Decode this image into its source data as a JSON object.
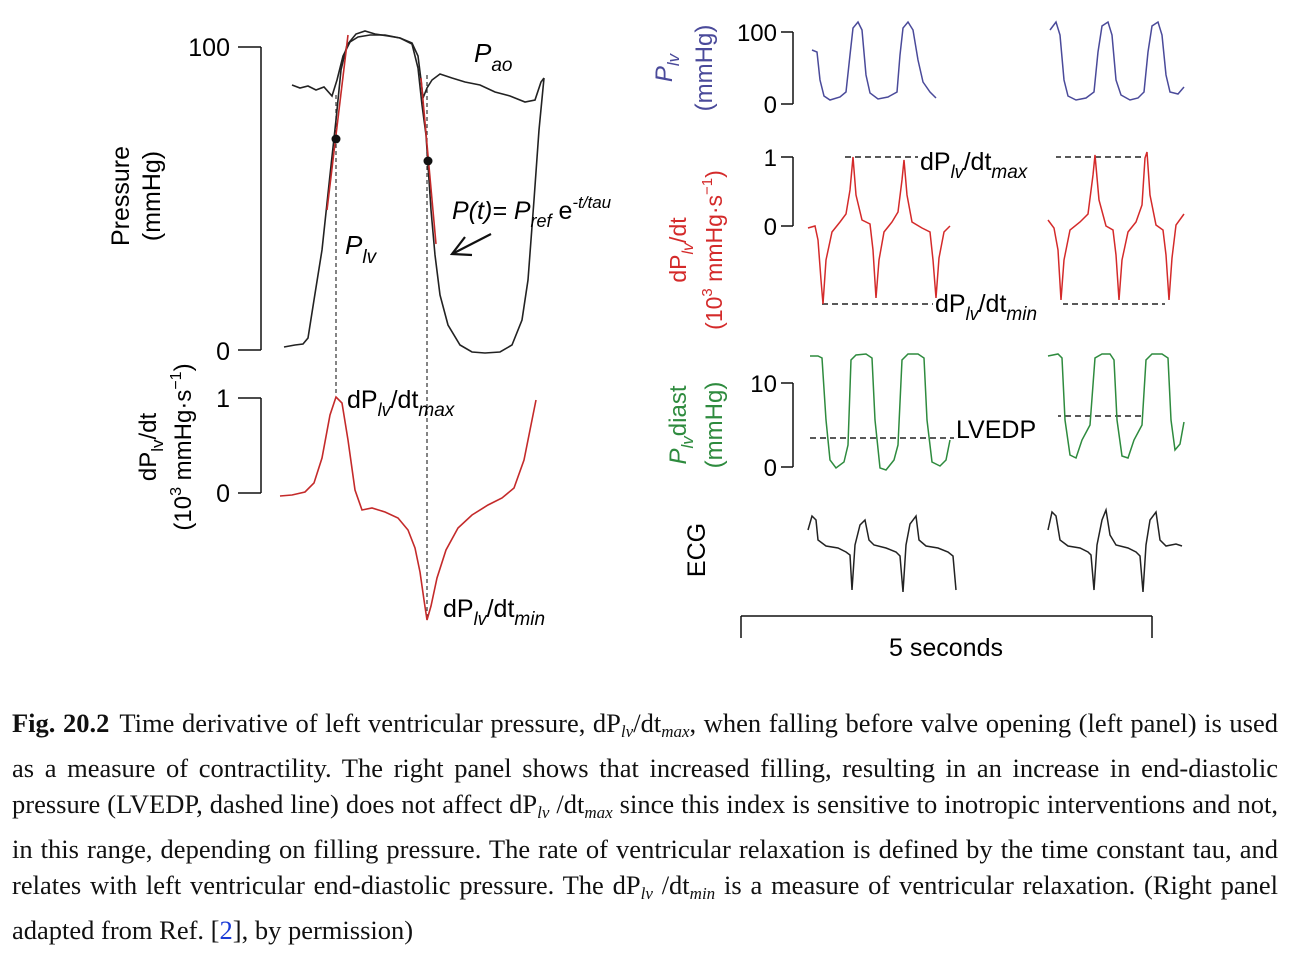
{
  "left_panel": {
    "pressure_axis": {
      "ylabel": "Pressure",
      "yunit": "(mmHg)",
      "ticks": [
        "0",
        "100"
      ]
    },
    "labels": {
      "pao_main": "P",
      "pao_sub": "ao",
      "plv_main": "P",
      "plv_sub": "lv"
    },
    "formula": {
      "lhs": "P(t)= P",
      "ref_sub": "ref",
      "exp_base": " e",
      "exp_power": "-t/tau"
    },
    "deriv_axis": {
      "ylabel": "dP",
      "ylabel_sub": "lv",
      "ylabel_tail": "/dt",
      "yunit_pre": "(10",
      "yunit_sup": "3",
      "yunit_mid": " mmHg·s",
      "yunit_sup2": "−1",
      "yunit_post": ")",
      "ticks": [
        "0",
        "1"
      ]
    },
    "max_label": {
      "pre": "dP",
      "sub": "lv",
      "mid": "/dt",
      "sub2": "max"
    },
    "min_label": {
      "pre": "dP",
      "sub": "lv",
      "mid": "/dt",
      "sub2": "min"
    }
  },
  "right_panel": {
    "plv": {
      "ylabel_main": "P",
      "ylabel_sub": "lv",
      "yunit": "(mmHg)",
      "ticks": [
        "0",
        "100"
      ],
      "color": "#4a4a9a"
    },
    "dpdt": {
      "ylabel_pre": "dP",
      "ylabel_sub": "lv",
      "ylabel_post": "/dt",
      "yunit_pre": "(10",
      "yunit_sup": "3",
      "yunit_mid": " mmHg·s",
      "yunit_sup2": "−1",
      "yunit_post": ")",
      "ticks": [
        "0",
        "1"
      ],
      "color": "#d42a2a",
      "max_label": {
        "pre": "dP",
        "sub": "lv",
        "mid": "/dt",
        "sub2": "max"
      },
      "min_label": {
        "pre": "dP",
        "sub": "lv",
        "mid": "/dt",
        "sub2": "min"
      }
    },
    "diast": {
      "ylabel_main": "P",
      "ylabel_sub": "lv",
      "ylabel_tail": "diast",
      "yunit": "(mmHg)",
      "ticks": [
        "0",
        "10"
      ],
      "color": "#2e8b3e",
      "lvedp_label": "LVEDP"
    },
    "ecg": {
      "ylabel": "ECG",
      "color": "#222222"
    },
    "time_scale": "5 seconds"
  },
  "caption": {
    "number": "Fig. 20.2",
    "p1": "Time derivative of left ventricular pressure, dP",
    "p1_sub": "lv",
    "p1b": "/dt",
    "p1b_sub": "max",
    "p2": ", when falling before valve opening (left panel) is used as a measure of contractility. The right panel shows that increased filling, resulting in an increase in end-diastolic pressure (LVEDP, dashed line) does not affect dP",
    "p2_sub": "lv",
    "p2b": " /dt",
    "p2b_sub": "max",
    "p3": " since this index is sensitive to inotropic interventions and not, in this range, depending on filling pressure. The rate of ventricular relaxation is defined by the time constant tau, and relates with left ventricular end-diastolic pressure. The dP",
    "p3_sub": "lv",
    "p3b": " /dt",
    "p3b_sub": "min",
    "p4": " is a measure of ventricular relaxation. (Right panel adapted from Ref. [",
    "ref": "2",
    "p5": "], by permission)"
  },
  "chart_data": [
    {
      "type": "line",
      "panel": "left-pressure",
      "ylabel": "Pressure (mmHg)",
      "ylim": [
        0,
        100
      ],
      "grid": false,
      "series": [
        {
          "name": "Pao",
          "y_min": 75,
          "y_max": 100
        },
        {
          "name": "Plv",
          "y_min": 0,
          "y_max": 100
        }
      ]
    },
    {
      "type": "line",
      "panel": "left-derivative",
      "ylabel": "dPlv/dt (10^3 mmHg·s^-1)",
      "ylim": [
        -1.3,
        1
      ],
      "grid": false,
      "series": [
        {
          "name": "dPlv/dt",
          "max": 1.0,
          "min": -1.3
        }
      ]
    },
    {
      "type": "line",
      "panel": "right-plv",
      "ylabel": "Plv (mmHg)",
      "ylim": [
        0,
        100
      ],
      "grid": false
    },
    {
      "type": "line",
      "panel": "right-dpdt",
      "ylabel": "dPlv/dt (10^3 mmHg·s^-1)",
      "ylim": [
        -1.2,
        1
      ],
      "grid": false
    },
    {
      "type": "line",
      "panel": "right-diast",
      "ylabel": "Plv diast (mmHg)",
      "ylim": [
        0,
        10
      ],
      "grid": false,
      "series": [
        {
          "name": "LVEDP",
          "values": [
            3.5,
            6
          ]
        }
      ]
    },
    {
      "type": "line",
      "panel": "right-ecg",
      "ylabel": "ECG"
    }
  ]
}
